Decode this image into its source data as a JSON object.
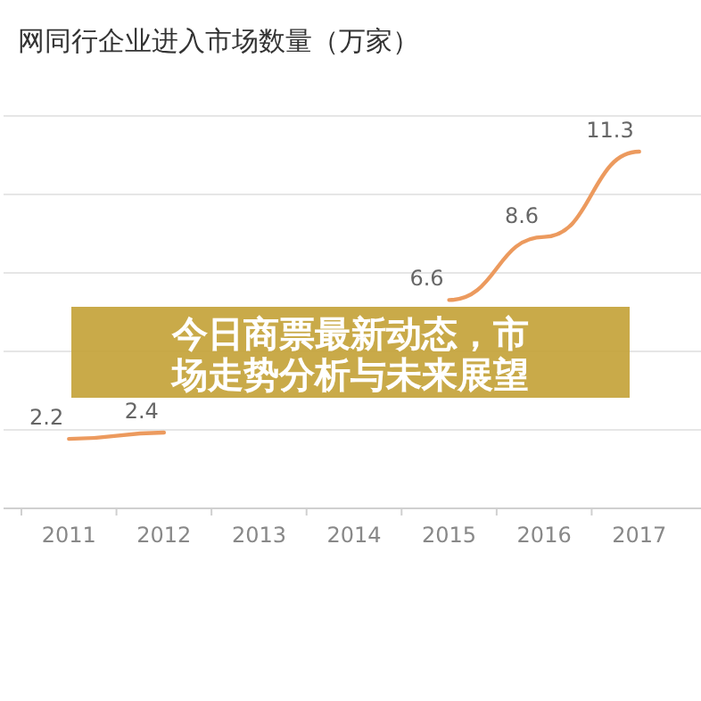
{
  "chart_data": {
    "type": "line",
    "title": "网同行企业进入市场数量（万家）",
    "categories": [
      "2011",
      "2012",
      "2013",
      "2014",
      "2015",
      "2016",
      "2017"
    ],
    "series": [
      {
        "color": "#ec9a5e",
        "values": [
          2.2,
          2.4,
          null,
          null,
          6.6,
          8.6,
          11.3
        ]
      }
    ],
    "data_labels": true,
    "grid": "y",
    "marker": "none",
    "line_style": "solid",
    "annotations": [
      "今日商票最新动态，市场走势分析与未来展望"
    ]
  }
}
